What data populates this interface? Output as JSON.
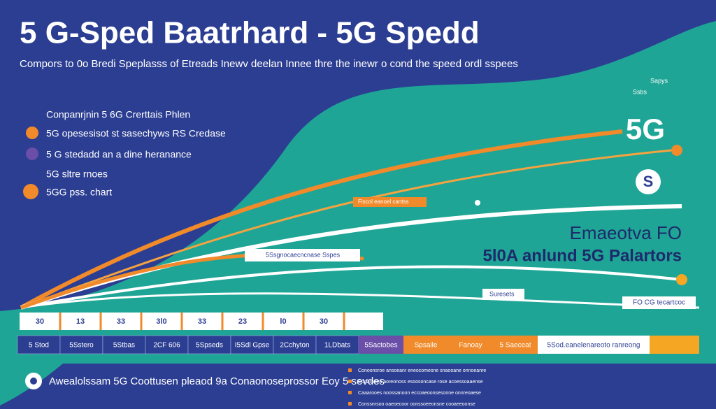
{
  "header": {
    "title": "5 G-Sped Baatrhard - 5G Spedd",
    "subtitle": "Compors to 0o Bredi Speplasss of Etreads Inewv deelan Innee thre the inewr o cond the speed ordl sspees"
  },
  "legend": {
    "heading": "Conpanrjnin 5 6G Crerttais Phlen",
    "items": [
      "5G opesesisot st sasechyws RS Credase",
      "5 G stedadd an a dine heranance",
      "5G sltre rnoes",
      "5GG pss. chart"
    ]
  },
  "right_panel": {
    "badge": "5G",
    "top_note": "Sapys",
    "small_note": "Ssbs",
    "icon_letter": "S",
    "line1": "Emaeotva FO",
    "line2": "5l0A anlund 5G Palartors"
  },
  "line_labels": [
    "Fiscol eanoel cantss",
    "5Ssgnocaecncnase Sspes",
    "Suresets",
    "FO CG tecartcoc"
  ],
  "number_row": [
    "30",
    "13",
    "33",
    "3l0",
    "33",
    "23",
    "l0",
    "30"
  ],
  "bar_row": [
    "5 Stod",
    "5Sstero",
    "5Stbas",
    "2CF 606",
    "5Spseds",
    "I5Sdl Gpse",
    "2Cchyton",
    "1LDbats",
    "5Sactobes",
    "Spsaile",
    "Fanoay",
    "5 Saeceat",
    "5Sod.eanelenareoto ranreong"
  ],
  "footer": {
    "text": "Awealolssam 5G Coottusen pleaod 9a Conaonoseprossor Eoy 5 sevdes",
    "notes": [
      "Conoonsroe ansoeanr eneocomesne snaooane onnoeanre",
      "Conaroons aoreonoss esoosoncase rose acoessoaaense",
      "Caaarooes noossanoon eccoaeoonsesonne onnreoaese",
      "Conssnrsoo oaeoecoor oonssoeeonsne cooaeeoonse"
    ]
  }
}
